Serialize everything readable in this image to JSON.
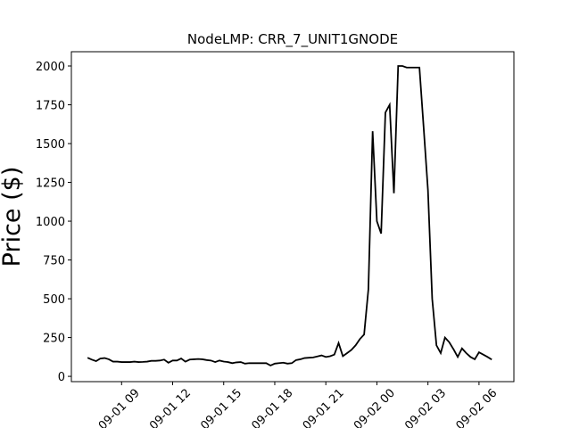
{
  "chart_data": {
    "type": "line",
    "title": "NodeLMP: CRR_7_UNIT1GNODE",
    "y_label": "Price ($)",
    "x": [
      7,
      7.25,
      7.5,
      7.75,
      8,
      8.25,
      8.5,
      8.75,
      9,
      9.25,
      9.5,
      9.75,
      10,
      10.25,
      10.5,
      10.75,
      11,
      11.25,
      11.5,
      11.75,
      12,
      12.25,
      12.5,
      12.75,
      13,
      13.25,
      13.5,
      13.75,
      14,
      14.25,
      14.5,
      14.75,
      15,
      15.25,
      15.5,
      15.75,
      16,
      16.25,
      16.5,
      16.75,
      17,
      17.25,
      17.5,
      17.75,
      18,
      18.25,
      18.5,
      18.75,
      19,
      19.25,
      19.5,
      19.75,
      20,
      20.25,
      20.5,
      20.75,
      21,
      21.25,
      21.5,
      21.75,
      22,
      22.25,
      22.5,
      22.75,
      23,
      23.25,
      23.5,
      23.75,
      24,
      24.25,
      24.5,
      24.75,
      25,
      25.25,
      25.5,
      25.75,
      26,
      26.25,
      26.5,
      26.75,
      27,
      27.25,
      27.5,
      27.75,
      28,
      28.25,
      28.5,
      28.75,
      29,
      29.25,
      29.5,
      29.75,
      30,
      30.25,
      30.5,
      30.75
    ],
    "series": [
      {
        "name": "Price",
        "color": "#000000",
        "values": [
          120,
          108,
          98,
          115,
          118,
          110,
          95,
          95,
          92,
          92,
          92,
          95,
          92,
          93,
          95,
          100,
          100,
          102,
          108,
          88,
          102,
          102,
          115,
          95,
          108,
          110,
          112,
          110,
          105,
          102,
          92,
          102,
          95,
          92,
          85,
          90,
          92,
          82,
          85,
          85,
          85,
          85,
          85,
          70,
          82,
          85,
          88,
          82,
          85,
          105,
          110,
          118,
          120,
          122,
          128,
          135,
          125,
          130,
          140,
          215,
          130,
          150,
          170,
          200,
          240,
          270,
          560,
          1580,
          1000,
          920,
          1700,
          1750,
          1180,
          2000,
          2000,
          1990,
          1990,
          1990,
          1990,
          1600,
          1200,
          500,
          200,
          150,
          250,
          220,
          175,
          125,
          180,
          150,
          125,
          110,
          155,
          140,
          125,
          108
        ]
      }
    ],
    "xlim": [
      6.05,
      32.05
    ],
    "xticks": [
      {
        "value": 9,
        "label": "09-01 09"
      },
      {
        "value": 12,
        "label": "09-01 12"
      },
      {
        "value": 15,
        "label": "09-01 15"
      },
      {
        "value": 18,
        "label": "09-01 18"
      },
      {
        "value": 21,
        "label": "09-01 21"
      },
      {
        "value": 24,
        "label": "09-02 00"
      },
      {
        "value": 27,
        "label": "09-02 03"
      },
      {
        "value": 30,
        "label": "09-02 06"
      }
    ],
    "ylim": [
      -34,
      2092
    ],
    "yticks": [
      0,
      250,
      500,
      750,
      1000,
      1250,
      1500,
      1750,
      2000
    ]
  }
}
